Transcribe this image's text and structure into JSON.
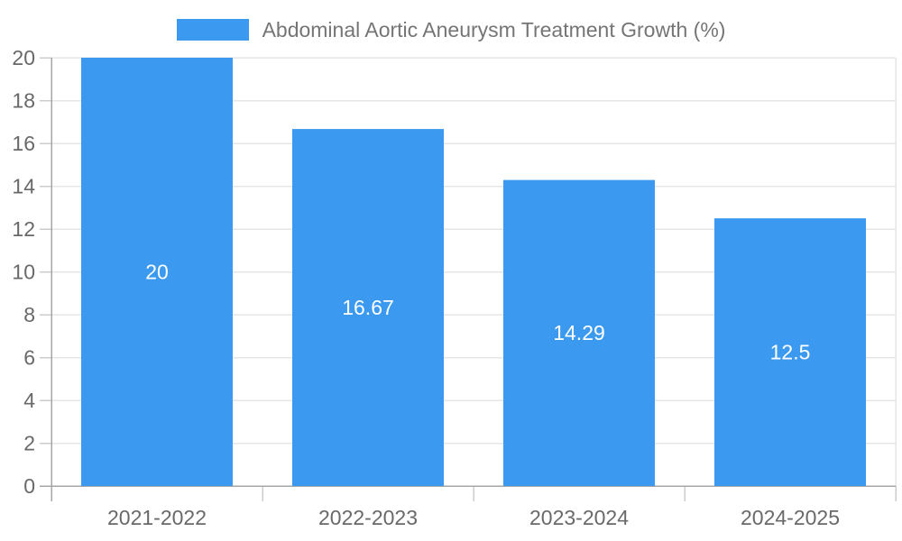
{
  "chart_data": {
    "type": "bar",
    "title": "Abdominal Aortic Aneurysm Treatment Growth (%)",
    "categories": [
      "2021-2022",
      "2022-2023",
      "2023-2024",
      "2024-2025"
    ],
    "values": [
      20,
      16.67,
      14.29,
      12.5
    ],
    "value_labels": [
      "20",
      "16.67",
      "14.29",
      "12.5"
    ],
    "series": [
      {
        "name": "Abdominal Aortic Aneurysm Treatment Growth (%)",
        "values": [
          20,
          16.67,
          14.29,
          12.5
        ]
      }
    ],
    "xlabel": "",
    "ylabel": "",
    "ylim": [
      0,
      20
    ],
    "ytick_step": 2,
    "ytick_labels": [
      "0",
      "2",
      "4",
      "6",
      "8",
      "10",
      "12",
      "14",
      "16",
      "18",
      "20"
    ],
    "grid": true,
    "legend_position": "top",
    "colors": {
      "bar": "#3B9AEF",
      "bar_value_text": "#ffffff",
      "axis_text": "#696969",
      "legend_text": "#757575",
      "grid_line": "#e6e6e6",
      "axis_line": "#a6a6a6",
      "tick_line": "#cccccc"
    }
  }
}
